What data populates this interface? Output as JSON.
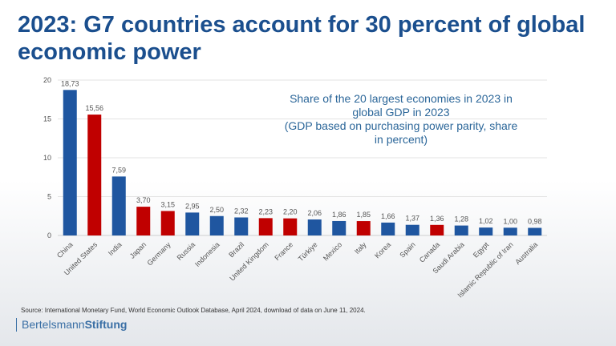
{
  "title": "2023: G7 countries account for 30 percent of global economic power",
  "annotation": [
    "Share of the 20 largest economies in 2023 in",
    "global GDP in 2023",
    "(GDP based on purchasing power parity, share",
    "in percent)"
  ],
  "source": "Source: International Monetary Fund, World Economic Outlook Database, April 2024, download of data on June 11, 2024.",
  "logo": {
    "part1": "Bertelsmann",
    "part2": "Stiftung"
  },
  "colors": {
    "g7": "#c00000",
    "other": "#1f56a0",
    "title": "#1b4f8e"
  },
  "chart_data": {
    "type": "bar",
    "title": "",
    "xlabel": "",
    "ylabel": "",
    "ylim": [
      0,
      20
    ],
    "yticks": [
      0,
      5,
      10,
      15,
      20
    ],
    "grid": true,
    "categories": [
      "China",
      "United States",
      "India",
      "Japan",
      "Germany",
      "Russia",
      "Indonesia",
      "Brazil",
      "United Kingdom",
      "France",
      "Türkiye",
      "Mexico",
      "Italy",
      "Korea",
      "Spain",
      "Canada",
      "Saudi Arabia",
      "Egypt",
      "Islamic Republic of Iran",
      "Australia"
    ],
    "values": [
      18.73,
      15.56,
      7.59,
      3.7,
      3.15,
      2.95,
      2.5,
      2.32,
      2.23,
      2.2,
      2.06,
      1.86,
      1.85,
      1.66,
      1.37,
      1.36,
      1.28,
      1.02,
      1.0,
      0.98
    ],
    "labels": [
      "18,73",
      "15,56",
      "7,59",
      "3,70",
      "3,15",
      "2,95",
      "2,50",
      "2,32",
      "2,23",
      "2,20",
      "2,06",
      "1,86",
      "1,85",
      "1,66",
      "1,37",
      "1,36",
      "1,28",
      "1,02",
      "1,00",
      "0,98"
    ],
    "g7": [
      false,
      true,
      false,
      true,
      true,
      false,
      false,
      false,
      true,
      true,
      false,
      false,
      true,
      false,
      false,
      true,
      false,
      false,
      false,
      false
    ]
  }
}
